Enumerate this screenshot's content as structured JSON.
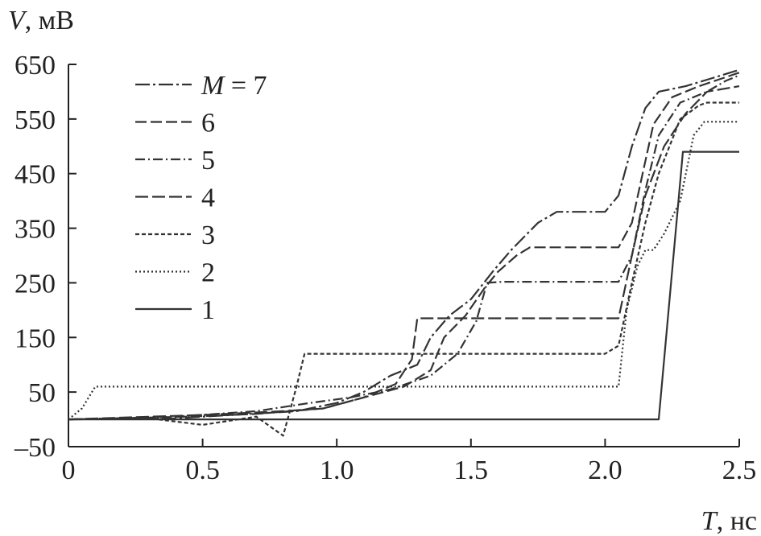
{
  "chart_data": {
    "type": "line",
    "xlabel_var": "T",
    "xlabel_unit": ", нс",
    "ylabel_var": "V",
    "ylabel_unit": ", мВ",
    "xlim": [
      0,
      2.5
    ],
    "ylim": [
      -50,
      650
    ],
    "xticks": [
      0,
      0.5,
      1.0,
      1.5,
      2.0,
      2.5
    ],
    "xtick_labels": [
      "0",
      "0.5",
      "1.0",
      "1.5",
      "2.0",
      "2.5"
    ],
    "yticks": [
      -50,
      50,
      150,
      250,
      350,
      450,
      550,
      650
    ],
    "ytick_labels": [
      "–50",
      "50",
      "150",
      "250",
      "350",
      "450",
      "550",
      "650"
    ],
    "grid": false,
    "legend_position": "top-left",
    "legend_var": "M",
    "legend_eq": " = 7",
    "series": [
      {
        "name": "7",
        "dash": "18 4 3 4",
        "points": [
          [
            0,
            0
          ],
          [
            0.4,
            2
          ],
          [
            0.85,
            15
          ],
          [
            1.0,
            30
          ],
          [
            1.1,
            50
          ],
          [
            1.2,
            80
          ],
          [
            1.3,
            100
          ],
          [
            1.35,
            150
          ],
          [
            1.42,
            190
          ],
          [
            1.5,
            220
          ],
          [
            1.58,
            270
          ],
          [
            1.65,
            310
          ],
          [
            1.75,
            360
          ],
          [
            1.82,
            380
          ],
          [
            2.0,
            380
          ],
          [
            2.05,
            410
          ],
          [
            2.1,
            500
          ],
          [
            2.15,
            570
          ],
          [
            2.2,
            600
          ],
          [
            2.3,
            610
          ],
          [
            2.4,
            625
          ],
          [
            2.5,
            640
          ]
        ]
      },
      {
        "name": "6",
        "dash": "14 5",
        "points": [
          [
            0,
            0
          ],
          [
            0.45,
            5
          ],
          [
            0.7,
            10
          ],
          [
            0.95,
            20
          ],
          [
            1.1,
            40
          ],
          [
            1.25,
            60
          ],
          [
            1.35,
            90
          ],
          [
            1.4,
            150
          ],
          [
            1.48,
            190
          ],
          [
            1.55,
            240
          ],
          [
            1.6,
            270
          ],
          [
            1.67,
            300
          ],
          [
            1.72,
            315
          ],
          [
            2.05,
            315
          ],
          [
            2.1,
            360
          ],
          [
            2.14,
            450
          ],
          [
            2.18,
            540
          ],
          [
            2.25,
            590
          ],
          [
            2.35,
            610
          ],
          [
            2.5,
            635
          ]
        ]
      },
      {
        "name": "5",
        "dash": "12 4 2 4",
        "points": [
          [
            0,
            0
          ],
          [
            0.4,
            5
          ],
          [
            0.7,
            15
          ],
          [
            0.9,
            30
          ],
          [
            1.05,
            40
          ],
          [
            1.2,
            55
          ],
          [
            1.35,
            80
          ],
          [
            1.45,
            120
          ],
          [
            1.52,
            180
          ],
          [
            1.56,
            250
          ],
          [
            1.62,
            252
          ],
          [
            2.05,
            252
          ],
          [
            2.1,
            300
          ],
          [
            2.15,
            420
          ],
          [
            2.2,
            520
          ],
          [
            2.28,
            580
          ],
          [
            2.38,
            600
          ],
          [
            2.45,
            620
          ],
          [
            2.5,
            630
          ]
        ]
      },
      {
        "name": "4",
        "dash": "16 5",
        "points": [
          [
            0,
            0
          ],
          [
            0.5,
            8
          ],
          [
            0.8,
            15
          ],
          [
            0.95,
            20
          ],
          [
            1.1,
            40
          ],
          [
            1.22,
            65
          ],
          [
            1.28,
            110
          ],
          [
            1.3,
            185
          ],
          [
            2.05,
            185
          ],
          [
            2.1,
            300
          ],
          [
            2.15,
            410
          ],
          [
            2.22,
            500
          ],
          [
            2.3,
            560
          ],
          [
            2.38,
            600
          ],
          [
            2.5,
            610
          ]
        ]
      },
      {
        "name": "3",
        "dash": "5 3",
        "points": [
          [
            0,
            0
          ],
          [
            0.3,
            2
          ],
          [
            0.5,
            -10
          ],
          [
            0.7,
            5
          ],
          [
            0.8,
            -30
          ],
          [
            0.85,
            60
          ],
          [
            0.88,
            120
          ],
          [
            2.0,
            120
          ],
          [
            2.05,
            135
          ],
          [
            2.1,
            250
          ],
          [
            2.15,
            360
          ],
          [
            2.2,
            450
          ],
          [
            2.28,
            550
          ],
          [
            2.35,
            575
          ],
          [
            2.38,
            580
          ],
          [
            2.5,
            580
          ]
        ]
      },
      {
        "name": "2",
        "dash": "2 3",
        "points": [
          [
            0,
            0
          ],
          [
            0.05,
            20
          ],
          [
            0.1,
            60
          ],
          [
            2.05,
            60
          ],
          [
            2.08,
            200
          ],
          [
            2.12,
            280
          ],
          [
            2.15,
            310
          ],
          [
            2.18,
            310
          ],
          [
            2.22,
            340
          ],
          [
            2.28,
            400
          ],
          [
            2.33,
            520
          ],
          [
            2.37,
            545
          ],
          [
            2.5,
            545
          ]
        ]
      },
      {
        "name": "1",
        "dash": "",
        "points": [
          [
            0,
            0
          ],
          [
            2.2,
            0
          ],
          [
            2.29,
            490
          ],
          [
            2.5,
            490
          ]
        ]
      }
    ]
  }
}
